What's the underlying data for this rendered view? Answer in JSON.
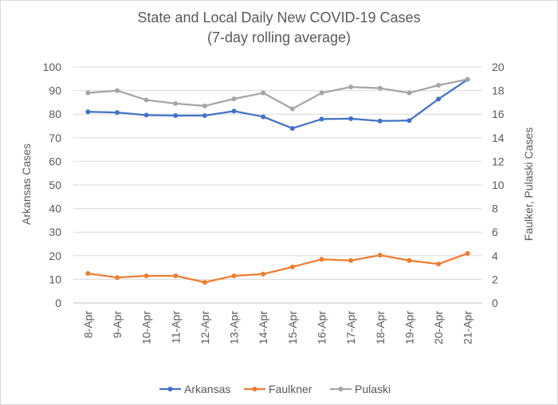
{
  "chart_data": {
    "type": "line",
    "title_line1": "State and Local Daily New COVID-19 Cases",
    "title_line2": "(7-day rolling average)",
    "categories": [
      "8-Apr",
      "9-Apr",
      "10-Apr",
      "11-Apr",
      "12-Apr",
      "13-Apr",
      "14-Apr",
      "15-Apr",
      "16-Apr",
      "17-Apr",
      "18-Apr",
      "19-Apr",
      "20-Apr",
      "21-Apr"
    ],
    "ylabel_left": "Arkansas Cases",
    "ylabel_right": "Faulker, Pulaski Cases",
    "ylim_left": [
      0,
      100
    ],
    "ylim_right": [
      0,
      20
    ],
    "yticks_left": [
      0,
      10,
      20,
      30,
      40,
      50,
      60,
      70,
      80,
      90,
      100
    ],
    "yticks_right": [
      0,
      2,
      4,
      6,
      8,
      10,
      12,
      14,
      16,
      18,
      20
    ],
    "grid": true,
    "legend_position": "bottom",
    "series": [
      {
        "name": "Arkansas",
        "axis": "left",
        "color": "#4472C4",
        "values": [
          81,
          80.7,
          79.6,
          79.4,
          79.4,
          81.3,
          78.9,
          74,
          77.9,
          78.1,
          77.1,
          77.3,
          86.4,
          94.7
        ]
      },
      {
        "name": "Faulkner",
        "axis": "right",
        "color": "#ED7D31",
        "values": [
          2.5,
          2.15,
          2.3,
          2.3,
          1.75,
          2.3,
          2.45,
          3.05,
          3.7,
          3.6,
          4.05,
          3.6,
          3.3,
          4.2
        ]
      },
      {
        "name": "Pulaski",
        "axis": "right",
        "color": "#A5A5A5",
        "values": [
          17.8,
          18,
          17.2,
          16.9,
          16.7,
          17.3,
          17.8,
          16.45,
          17.8,
          18.3,
          18.2,
          17.8,
          18.45,
          18.95
        ]
      }
    ]
  },
  "colors": {
    "gridline": "#d9d9d9",
    "text": "#595959"
  }
}
